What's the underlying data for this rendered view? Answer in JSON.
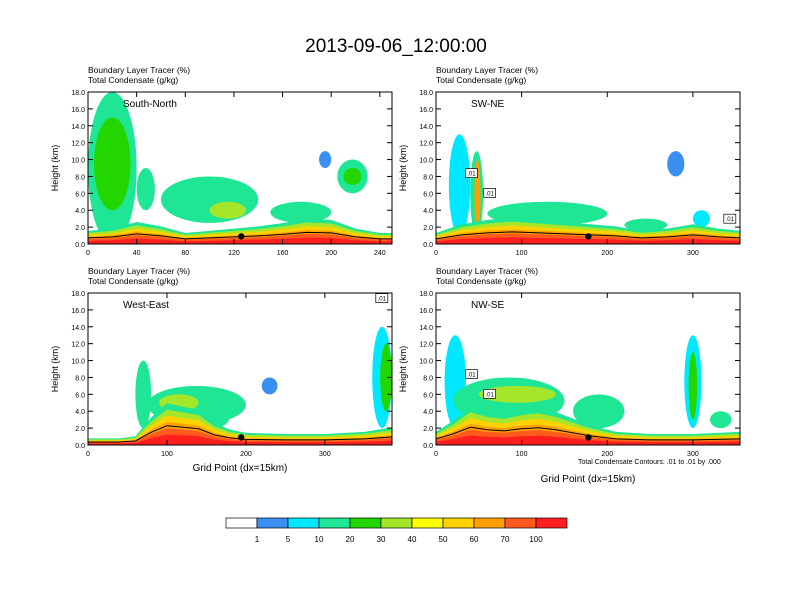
{
  "figure": {
    "title": "2013-09-06_12:00:00",
    "footnote": "Total Condensate Contours: .01 to .01 by .000"
  },
  "chart_data": [
    {
      "type": "heatmap",
      "panel_label": "South-North",
      "title_line1": "Boundary Layer Tracer   (%)",
      "title_line2": "Total Condensate   (g/kg)",
      "xlabel": "",
      "ylabel": "Height (km)",
      "xlim": [
        0,
        250
      ],
      "ylim": [
        0,
        18
      ],
      "xticks": [
        0,
        40,
        80,
        120,
        160,
        200,
        240
      ],
      "yticks": [
        0,
        2,
        4,
        6,
        8,
        10,
        12,
        14,
        16,
        18
      ],
      "ytick_labels": [
        "0.0",
        "2.0",
        "4.0",
        "6.0",
        "8.0",
        "10.0",
        "12.0",
        "14.0",
        "16.0",
        "18.0"
      ],
      "marker_x": 126,
      "contour_labels": [],
      "pbl_profile": [
        [
          0,
          1.2
        ],
        [
          20,
          1.4
        ],
        [
          40,
          2.0
        ],
        [
          60,
          1.6
        ],
        [
          80,
          1.0
        ],
        [
          100,
          1.2
        ],
        [
          120,
          1.4
        ],
        [
          140,
          1.6
        ],
        [
          160,
          1.9
        ],
        [
          180,
          2.3
        ],
        [
          200,
          2.2
        ],
        [
          220,
          1.4
        ],
        [
          240,
          1.0
        ],
        [
          250,
          1.0
        ]
      ]
    },
    {
      "type": "heatmap",
      "panel_label": "SW-NE",
      "title_line1": "Boundary Layer Tracer   (%)",
      "title_line2": "Total Condensate   (g/kg)",
      "xlabel": "",
      "ylabel": "Height (km)",
      "xlim": [
        0,
        355
      ],
      "ylim": [
        0,
        18
      ],
      "xticks": [
        0,
        100,
        200,
        300
      ],
      "yticks": [
        0,
        2,
        4,
        6,
        8,
        10,
        12,
        14,
        16,
        18
      ],
      "ytick_labels": [
        "0.0",
        "2.0",
        "4.0",
        "6.0",
        "8.0",
        "10.0",
        "12.0",
        "14.0",
        "16.0",
        "18.0"
      ],
      "marker_x": 178,
      "contour_labels": [
        ".01",
        ".01",
        ".01"
      ],
      "pbl_profile": [
        [
          0,
          1.0
        ],
        [
          30,
          1.8
        ],
        [
          60,
          2.2
        ],
        [
          90,
          2.4
        ],
        [
          120,
          2.2
        ],
        [
          150,
          2.0
        ],
        [
          180,
          1.8
        ],
        [
          210,
          1.6
        ],
        [
          240,
          1.2
        ],
        [
          270,
          1.4
        ],
        [
          300,
          1.8
        ],
        [
          330,
          1.4
        ],
        [
          355,
          1.2
        ]
      ]
    },
    {
      "type": "heatmap",
      "panel_label": "West-East",
      "title_line1": "Boundary Layer Tracer   (%)",
      "title_line2": "Total Condensate   (g/kg)",
      "xlabel": "Grid Point (dx=15km)",
      "ylabel": "Height (km)",
      "xlim": [
        0,
        385
      ],
      "ylim": [
        0,
        18
      ],
      "xticks": [
        0,
        100,
        200,
        300
      ],
      "yticks": [
        0,
        2,
        4,
        6,
        8,
        10,
        12,
        14,
        16,
        18
      ],
      "ytick_labels": [
        "0.0",
        "2.0",
        "4.0",
        "6.0",
        "8.0",
        "10.0",
        "12.0",
        "14.0",
        "16.0",
        "18.0"
      ],
      "marker_x": 194,
      "contour_labels": [
        ".01"
      ],
      "pbl_profile": [
        [
          0,
          0.6
        ],
        [
          40,
          0.6
        ],
        [
          60,
          0.8
        ],
        [
          80,
          2.5
        ],
        [
          100,
          3.8
        ],
        [
          120,
          3.5
        ],
        [
          140,
          3.2
        ],
        [
          160,
          2.0
        ],
        [
          180,
          1.4
        ],
        [
          200,
          1.1
        ],
        [
          250,
          1.0
        ],
        [
          300,
          1.0
        ],
        [
          350,
          1.2
        ],
        [
          385,
          1.6
        ]
      ]
    },
    {
      "type": "heatmap",
      "panel_label": "NW-SE",
      "title_line1": "Boundary Layer Tracer   (%)",
      "title_line2": "Total Condensate   (g/kg)",
      "xlabel": "Grid Point (dx=15km)",
      "ylabel": "Height (km)",
      "xlim": [
        0,
        355
      ],
      "ylim": [
        0,
        18
      ],
      "xticks": [
        0,
        100,
        200,
        300
      ],
      "yticks": [
        0,
        2,
        4,
        6,
        8,
        10,
        12,
        14,
        16,
        18
      ],
      "ytick_labels": [
        "0.0",
        "2.0",
        "4.0",
        "6.0",
        "8.0",
        "10.0",
        "12.0",
        "14.0",
        "16.0",
        "18.0"
      ],
      "marker_x": 178,
      "contour_labels": [
        ".01",
        ".01"
      ],
      "pbl_profile": [
        [
          0,
          1.2
        ],
        [
          20,
          2.2
        ],
        [
          40,
          3.5
        ],
        [
          60,
          3.0
        ],
        [
          80,
          2.8
        ],
        [
          100,
          3.2
        ],
        [
          120,
          3.4
        ],
        [
          140,
          3.0
        ],
        [
          160,
          2.4
        ],
        [
          180,
          1.8
        ],
        [
          210,
          1.2
        ],
        [
          250,
          1.0
        ],
        [
          300,
          1.0
        ],
        [
          355,
          1.2
        ]
      ]
    }
  ],
  "colorbar": {
    "colors": [
      "#ffffff",
      "#3a8ff0",
      "#00e8ff",
      "#1ee694",
      "#23d600",
      "#a6e62a",
      "#ffff00",
      "#ffd200",
      "#ffa000",
      "#ff5a1e",
      "#ff1e1e"
    ],
    "labels": [
      "1",
      "5",
      "10",
      "20",
      "30",
      "40",
      "50",
      "60",
      "70",
      "100"
    ]
  }
}
